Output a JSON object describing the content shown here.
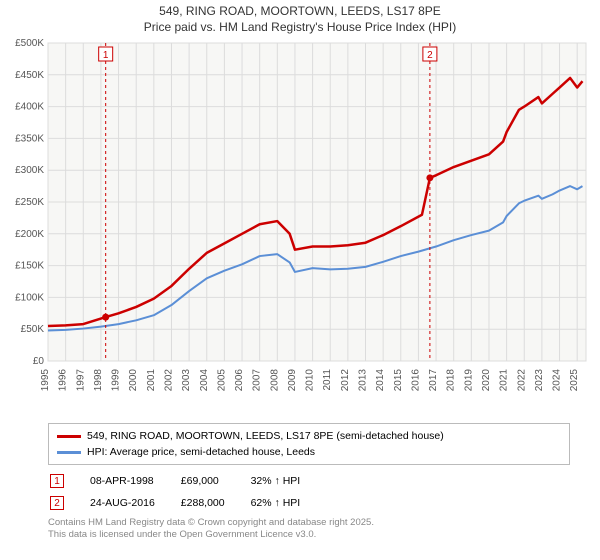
{
  "title_line1": "549, RING ROAD, MOORTOWN, LEEDS, LS17 8PE",
  "title_line2": "Price paid vs. HM Land Registry's House Price Index (HPI)",
  "title_fontsize": 12,
  "chart": {
    "type": "line",
    "plot_bg": "#f7f7f5",
    "page_bg": "#ffffff",
    "grid_color": "#dcdcdc",
    "xlim": [
      1995,
      2025.5
    ],
    "ylim": [
      0,
      500000
    ],
    "ytick_step": 50000,
    "yticks": [
      "£0",
      "£50K",
      "£100K",
      "£150K",
      "£200K",
      "£250K",
      "£300K",
      "£350K",
      "£400K",
      "£450K",
      "£500K"
    ],
    "xticks": [
      1995,
      1996,
      1997,
      1998,
      1999,
      2000,
      2001,
      2002,
      2003,
      2004,
      2005,
      2006,
      2007,
      2008,
      2009,
      2010,
      2011,
      2012,
      2013,
      2014,
      2015,
      2016,
      2017,
      2018,
      2019,
      2020,
      2021,
      2022,
      2023,
      2024,
      2025
    ],
    "axis_fontsize": 10,
    "axis_color": "#555",
    "series": [
      {
        "name": "property",
        "label": "549, RING ROAD, MOORTOWN, LEEDS, LS17 8PE (semi-detached house)",
        "color": "#cc0000",
        "width": 2.5,
        "data": [
          [
            1995,
            55000
          ],
          [
            1996,
            56000
          ],
          [
            1997,
            58000
          ],
          [
            1998.27,
            69000
          ],
          [
            1999,
            75000
          ],
          [
            2000,
            85000
          ],
          [
            2001,
            98000
          ],
          [
            2002,
            118000
          ],
          [
            2003,
            145000
          ],
          [
            2004,
            170000
          ],
          [
            2005,
            185000
          ],
          [
            2006,
            200000
          ],
          [
            2007,
            215000
          ],
          [
            2008,
            220000
          ],
          [
            2008.7,
            200000
          ],
          [
            2009,
            175000
          ],
          [
            2010,
            180000
          ],
          [
            2011,
            180000
          ],
          [
            2012,
            182000
          ],
          [
            2013,
            186000
          ],
          [
            2014,
            198000
          ],
          [
            2015,
            212000
          ],
          [
            2016.2,
            230000
          ],
          [
            2016.65,
            288000
          ],
          [
            2017,
            292000
          ],
          [
            2018,
            305000
          ],
          [
            2019,
            315000
          ],
          [
            2020,
            325000
          ],
          [
            2020.8,
            345000
          ],
          [
            2021,
            360000
          ],
          [
            2021.7,
            395000
          ],
          [
            2022,
            400000
          ],
          [
            2022.8,
            415000
          ],
          [
            2023,
            405000
          ],
          [
            2023.6,
            420000
          ],
          [
            2024,
            430000
          ],
          [
            2024.6,
            445000
          ],
          [
            2025,
            430000
          ],
          [
            2025.3,
            440000
          ]
        ]
      },
      {
        "name": "hpi",
        "label": "HPI: Average price, semi-detached house, Leeds",
        "color": "#5b8fd6",
        "width": 2,
        "data": [
          [
            1995,
            48000
          ],
          [
            1996,
            49000
          ],
          [
            1997,
            51000
          ],
          [
            1998,
            54000
          ],
          [
            1999,
            58000
          ],
          [
            2000,
            64000
          ],
          [
            2001,
            72000
          ],
          [
            2002,
            88000
          ],
          [
            2003,
            110000
          ],
          [
            2004,
            130000
          ],
          [
            2005,
            142000
          ],
          [
            2006,
            152000
          ],
          [
            2007,
            165000
          ],
          [
            2008,
            168000
          ],
          [
            2008.7,
            155000
          ],
          [
            2009,
            140000
          ],
          [
            2010,
            146000
          ],
          [
            2011,
            144000
          ],
          [
            2012,
            145000
          ],
          [
            2013,
            148000
          ],
          [
            2014,
            156000
          ],
          [
            2015,
            165000
          ],
          [
            2016,
            172000
          ],
          [
            2017,
            180000
          ],
          [
            2018,
            190000
          ],
          [
            2019,
            198000
          ],
          [
            2020,
            205000
          ],
          [
            2020.8,
            218000
          ],
          [
            2021,
            228000
          ],
          [
            2021.7,
            248000
          ],
          [
            2022,
            252000
          ],
          [
            2022.8,
            260000
          ],
          [
            2023,
            255000
          ],
          [
            2023.6,
            262000
          ],
          [
            2024,
            268000
          ],
          [
            2024.6,
            275000
          ],
          [
            2025,
            270000
          ],
          [
            2025.3,
            275000
          ]
        ]
      }
    ],
    "sale_markers": [
      {
        "num": "1",
        "x": 1998.27,
        "y_dot": 69000,
        "color": "#cc0000"
      },
      {
        "num": "2",
        "x": 2016.65,
        "y_dot": 288000,
        "color": "#cc0000"
      }
    ]
  },
  "legend": {
    "series1_label": "549, RING ROAD, MOORTOWN, LEEDS, LS17 8PE (semi-detached house)",
    "series2_label": "HPI: Average price, semi-detached house, Leeds",
    "series1_color": "#cc0000",
    "series2_color": "#5b8fd6"
  },
  "markers_table": [
    {
      "num": "1",
      "date": "08-APR-1998",
      "price": "£69,000",
      "delta": "32% ↑ HPI"
    },
    {
      "num": "2",
      "date": "24-AUG-2016",
      "price": "£288,000",
      "delta": "62% ↑ HPI"
    }
  ],
  "attribution_line1": "Contains HM Land Registry data © Crown copyright and database right 2025.",
  "attribution_line2": "This data is licensed under the Open Government Licence v3.0."
}
